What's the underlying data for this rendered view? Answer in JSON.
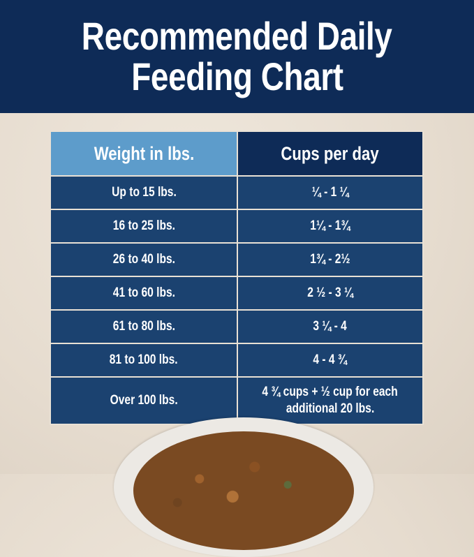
{
  "title": {
    "line1": "Recommended Daily",
    "line2": "Feeding Chart"
  },
  "table": {
    "headers": [
      "Weight in lbs.",
      "Cups per day"
    ],
    "rows": [
      {
        "weight": "Up to 15 lbs.",
        "cups": "¼ - 1 ¼"
      },
      {
        "weight": "16 to 25 lbs.",
        "cups": "1¼ - 1¾"
      },
      {
        "weight": "26 to 40 lbs.",
        "cups": "1¾ - 2½"
      },
      {
        "weight": "41 to 60 lbs.",
        "cups": "2 ½ - 3 ¼"
      },
      {
        "weight": "61 to 80 lbs.",
        "cups": "3 ¼ - 4"
      },
      {
        "weight": "81 to 100 lbs.",
        "cups": "4 - 4 ¾"
      },
      {
        "weight": "Over 100 lbs.",
        "cups": "4 ¾ cups + ½ cup for each",
        "cups_line2": "additional 20 lbs."
      }
    ]
  },
  "colors": {
    "navy": "#0e2b57",
    "row_blue": "#1b4270",
    "header_light_blue": "#5d9ccb",
    "background": "#e8dfd3"
  }
}
